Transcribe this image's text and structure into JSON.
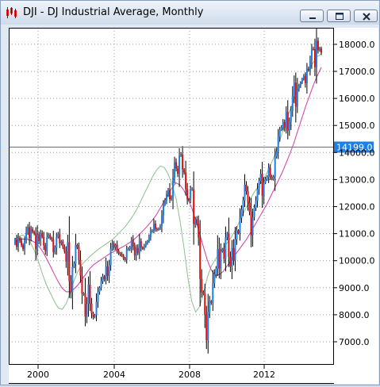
{
  "window": {
    "title": "DJI - DJ Industrial Average, Monthly",
    "icons": {
      "app": "candlestick-app-icon",
      "minimize": "minimize-icon",
      "maximize": "maximize-icon",
      "close": "close-icon"
    }
  },
  "chart_data": {
    "type": "candlestick",
    "series": [
      {
        "name": "",
        "kind": "ohlc",
        "note": "monthly DJIA candles, up=blue down=red"
      },
      {
        "name": "",
        "kind": "moving-average-long",
        "color": "#d23aa8"
      },
      {
        "name": "",
        "kind": "moving-average-short",
        "color": "#8cc08c"
      }
    ],
    "closes": [
      10790,
      10520,
      10850,
      10740,
      10570,
      10430,
      10750,
      11050,
      11240,
      10830,
      11170,
      11060,
      11010,
      10420,
      10950,
      10730,
      11020,
      10880,
      10560,
      10350,
      10870,
      10950,
      10840,
      10790,
      10320,
      10480,
      10870,
      10980,
      10640,
      10710,
      10500,
      10340,
      9960,
      10680,
      9240,
      8830,
      9770,
      9890,
      10580,
      10500,
      10020,
      9450,
      8790,
      8790,
      7940,
      8400,
      9110,
      8410,
      8050,
      7910,
      7990,
      8480,
      8850,
      9000,
      9240,
      9420,
      9310,
      9780,
      9430,
      9840,
      10450,
      10640,
      10480,
      10590,
      10360,
      10270,
      10240,
      10180,
      10080,
      10030,
      10420,
      10430,
      10490,
      10770,
      10500,
      10190,
      10470,
      10280,
      10720,
      10490,
      10440,
      10550,
      10670,
      10720,
      10870,
      11110,
      11110,
      11370,
      11170,
      11150,
      11190,
      11280,
      11670,
      12080,
      12220,
      12460,
      12620,
      12270,
      12350,
      13060,
      13640,
      13410,
      13210,
      13890,
      13930,
      13370,
      13260,
      12650,
      12270,
      12260,
      12640,
      12640,
      11350,
      11540,
      11380,
      10850,
      9330,
      8830,
      8780,
      8000,
      7060,
      8110,
      8500,
      8450,
      9170,
      9500,
      9710,
      10430,
      9710,
      10340,
      10430,
      10070,
      10860,
      11010,
      10140,
      9780,
      10470,
      10010,
      10790,
      11120,
      11010,
      11580,
      11890,
      12230,
      12810,
      12570,
      12140,
      11810,
      10940,
      11610,
      11960,
      12220,
      12650,
      12950,
      13210,
      12400,
      12880,
      13010,
      13090,
      13440,
      13100,
      13030,
      13110,
      13860,
      14050,
      14580,
      14840,
      14920,
      15120,
      14910,
      15500,
      14810,
      15130,
      15550,
      16090,
      16580,
      15700,
      16320,
      16460,
      16580,
      16720,
      16830,
      16560,
      17100,
      17040,
      17390,
      17830,
      17820,
      17160,
      18130,
      17780,
      17840,
      17690
    ],
    "moving_average_long": [
      10700,
      10760,
      10800,
      10790,
      10760,
      10680,
      10550,
      10350,
      10080,
      9800,
      9500,
      9220,
      8980,
      8850,
      8850,
      8950,
      9100,
      9300,
      9500,
      9700,
      9850,
      9950,
      10050,
      10150,
      10250,
      10320,
      10400,
      10480,
      10560,
      10650,
      10750,
      10880,
      11020,
      11170,
      11330,
      11500,
      11700,
      11950,
      12200,
      12450,
      12700,
      12880,
      12800,
      12600,
      12300,
      11950,
      11500,
      11000,
      10500,
      10000,
      9650,
      9450,
      9480,
      9600,
      9800,
      10000,
      10200,
      10400,
      10600,
      10800,
      11050,
      11300,
      11550,
      11800,
      12050,
      12350,
      12650,
      12950,
      13250,
      13600,
      13950,
      14350,
      14800,
      15250,
      15700,
      16100,
      16500,
      16850,
      17150
    ],
    "moving_average_short": [
      10800,
      10900,
      10950,
      10870,
      10650,
      10350,
      9950,
      9500,
      9100,
      8800,
      8500,
      8250,
      8200,
      8400,
      8800,
      9250,
      9600,
      9850,
      10000,
      10150,
      10280,
      10400,
      10500,
      10600,
      10700,
      10800,
      10950,
      11100,
      11250,
      11450,
      11650,
      11900,
      12200,
      12500,
      12800,
      13100,
      13350,
      13500,
      13450,
      13200,
      12800,
      12300,
      11500,
      10500,
      9400,
      8500,
      8100,
      8300,
      8800,
      9400,
      9800,
      10050,
      10250,
      10450,
      10650,
      10850,
      11100,
      11400,
      11700,
      12000,
      12300,
      12550,
      12750,
      12950,
      13200,
      13500,
      13850,
      14250,
      14700,
      15150,
      15550,
      15950,
      16300,
      16600,
      16850,
      17100,
      17350,
      17550,
      17650
    ],
    "y_ticks": [
      "7000.0",
      "8000.0",
      "9000.0",
      "10000.0",
      "11000.0",
      "12000.0",
      "13000.0",
      "14000.0",
      "15000.0",
      "16000.0",
      "17000.0",
      "18000.0"
    ],
    "x_ticks": [
      "2000",
      "2004",
      "2008",
      "2012"
    ],
    "ylim": [
      6600,
      18600
    ],
    "horizontal_line": {
      "value": 14199,
      "label": "14199.0"
    },
    "colors": {
      "up": "#1e7fe6",
      "down": "#e01010",
      "wick": "#000000",
      "grid": "#9a9a9a",
      "price_line": "#1e7fe6"
    },
    "grid": true
  }
}
